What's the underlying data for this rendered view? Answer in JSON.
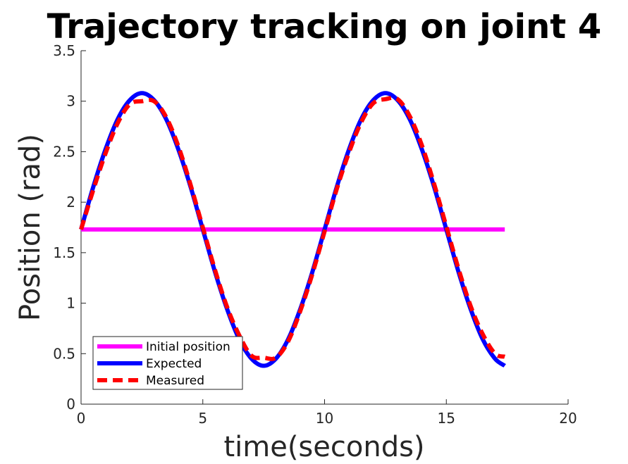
{
  "chart_data": {
    "type": "line",
    "title": "Trajectory tracking on joint 4",
    "xlabel": "time(seconds)",
    "ylabel": "Position (rad)",
    "xlim": [
      0,
      20
    ],
    "ylim": [
      0,
      3.5
    ],
    "xticks": [
      0,
      5,
      10,
      15,
      20
    ],
    "yticks": [
      0,
      0.5,
      1,
      1.5,
      2,
      2.5,
      3,
      3.5
    ],
    "xtick_labels": [
      "0",
      "5",
      "10",
      "15",
      "20"
    ],
    "ytick_labels": [
      "0",
      "0.5",
      "1",
      "1.5",
      "2",
      "2.5",
      "3",
      "3.5"
    ],
    "grid": false,
    "legend_position": "bottom-left",
    "series": [
      {
        "name": "Initial position",
        "color": "#ff00ff",
        "style": "solid",
        "x": [
          0,
          17.4
        ],
        "y": [
          1.73,
          1.73
        ]
      },
      {
        "name": "Expected",
        "color": "#0000ff",
        "style": "solid",
        "x": [
          0,
          0.5,
          1,
          1.5,
          2,
          2.5,
          3,
          3.5,
          4,
          4.5,
          5,
          5.5,
          6,
          6.5,
          7,
          7.5,
          8,
          8.5,
          9,
          9.5,
          10,
          10.5,
          11,
          11.5,
          12,
          12.5,
          13,
          13.5,
          14,
          14.5,
          15,
          15.5,
          16,
          16.5,
          17,
          17.4
        ],
        "y": [
          1.73,
          2.15,
          2.52,
          2.82,
          3.01,
          3.08,
          3.01,
          2.82,
          2.52,
          2.15,
          1.73,
          1.31,
          0.94,
          0.64,
          0.45,
          0.38,
          0.45,
          0.64,
          0.94,
          1.31,
          1.73,
          2.15,
          2.52,
          2.82,
          3.01,
          3.08,
          3.01,
          2.82,
          2.52,
          2.15,
          1.73,
          1.31,
          0.94,
          0.64,
          0.45,
          0.38
        ]
      },
      {
        "name": "Measured",
        "color": "#ff0000",
        "style": "dashed",
        "x": [
          0,
          0.5,
          1,
          1.5,
          2,
          2.5,
          3,
          3.5,
          4,
          4.5,
          5,
          5.5,
          6,
          6.5,
          7,
          7.5,
          8,
          8.5,
          9,
          9.5,
          10,
          10.5,
          11,
          11.5,
          12,
          12.5,
          13,
          13.5,
          14,
          14.5,
          15,
          15.5,
          16,
          16.5,
          17,
          17.4
        ],
        "y": [
          1.73,
          2.12,
          2.48,
          2.78,
          2.97,
          3.0,
          3.0,
          2.84,
          2.55,
          2.17,
          1.75,
          1.33,
          0.96,
          0.68,
          0.48,
          0.46,
          0.46,
          0.62,
          0.92,
          1.29,
          1.71,
          2.13,
          2.49,
          2.79,
          2.98,
          3.02,
          3.02,
          2.85,
          2.56,
          2.18,
          1.76,
          1.34,
          0.97,
          0.69,
          0.5,
          0.47
        ]
      }
    ]
  }
}
